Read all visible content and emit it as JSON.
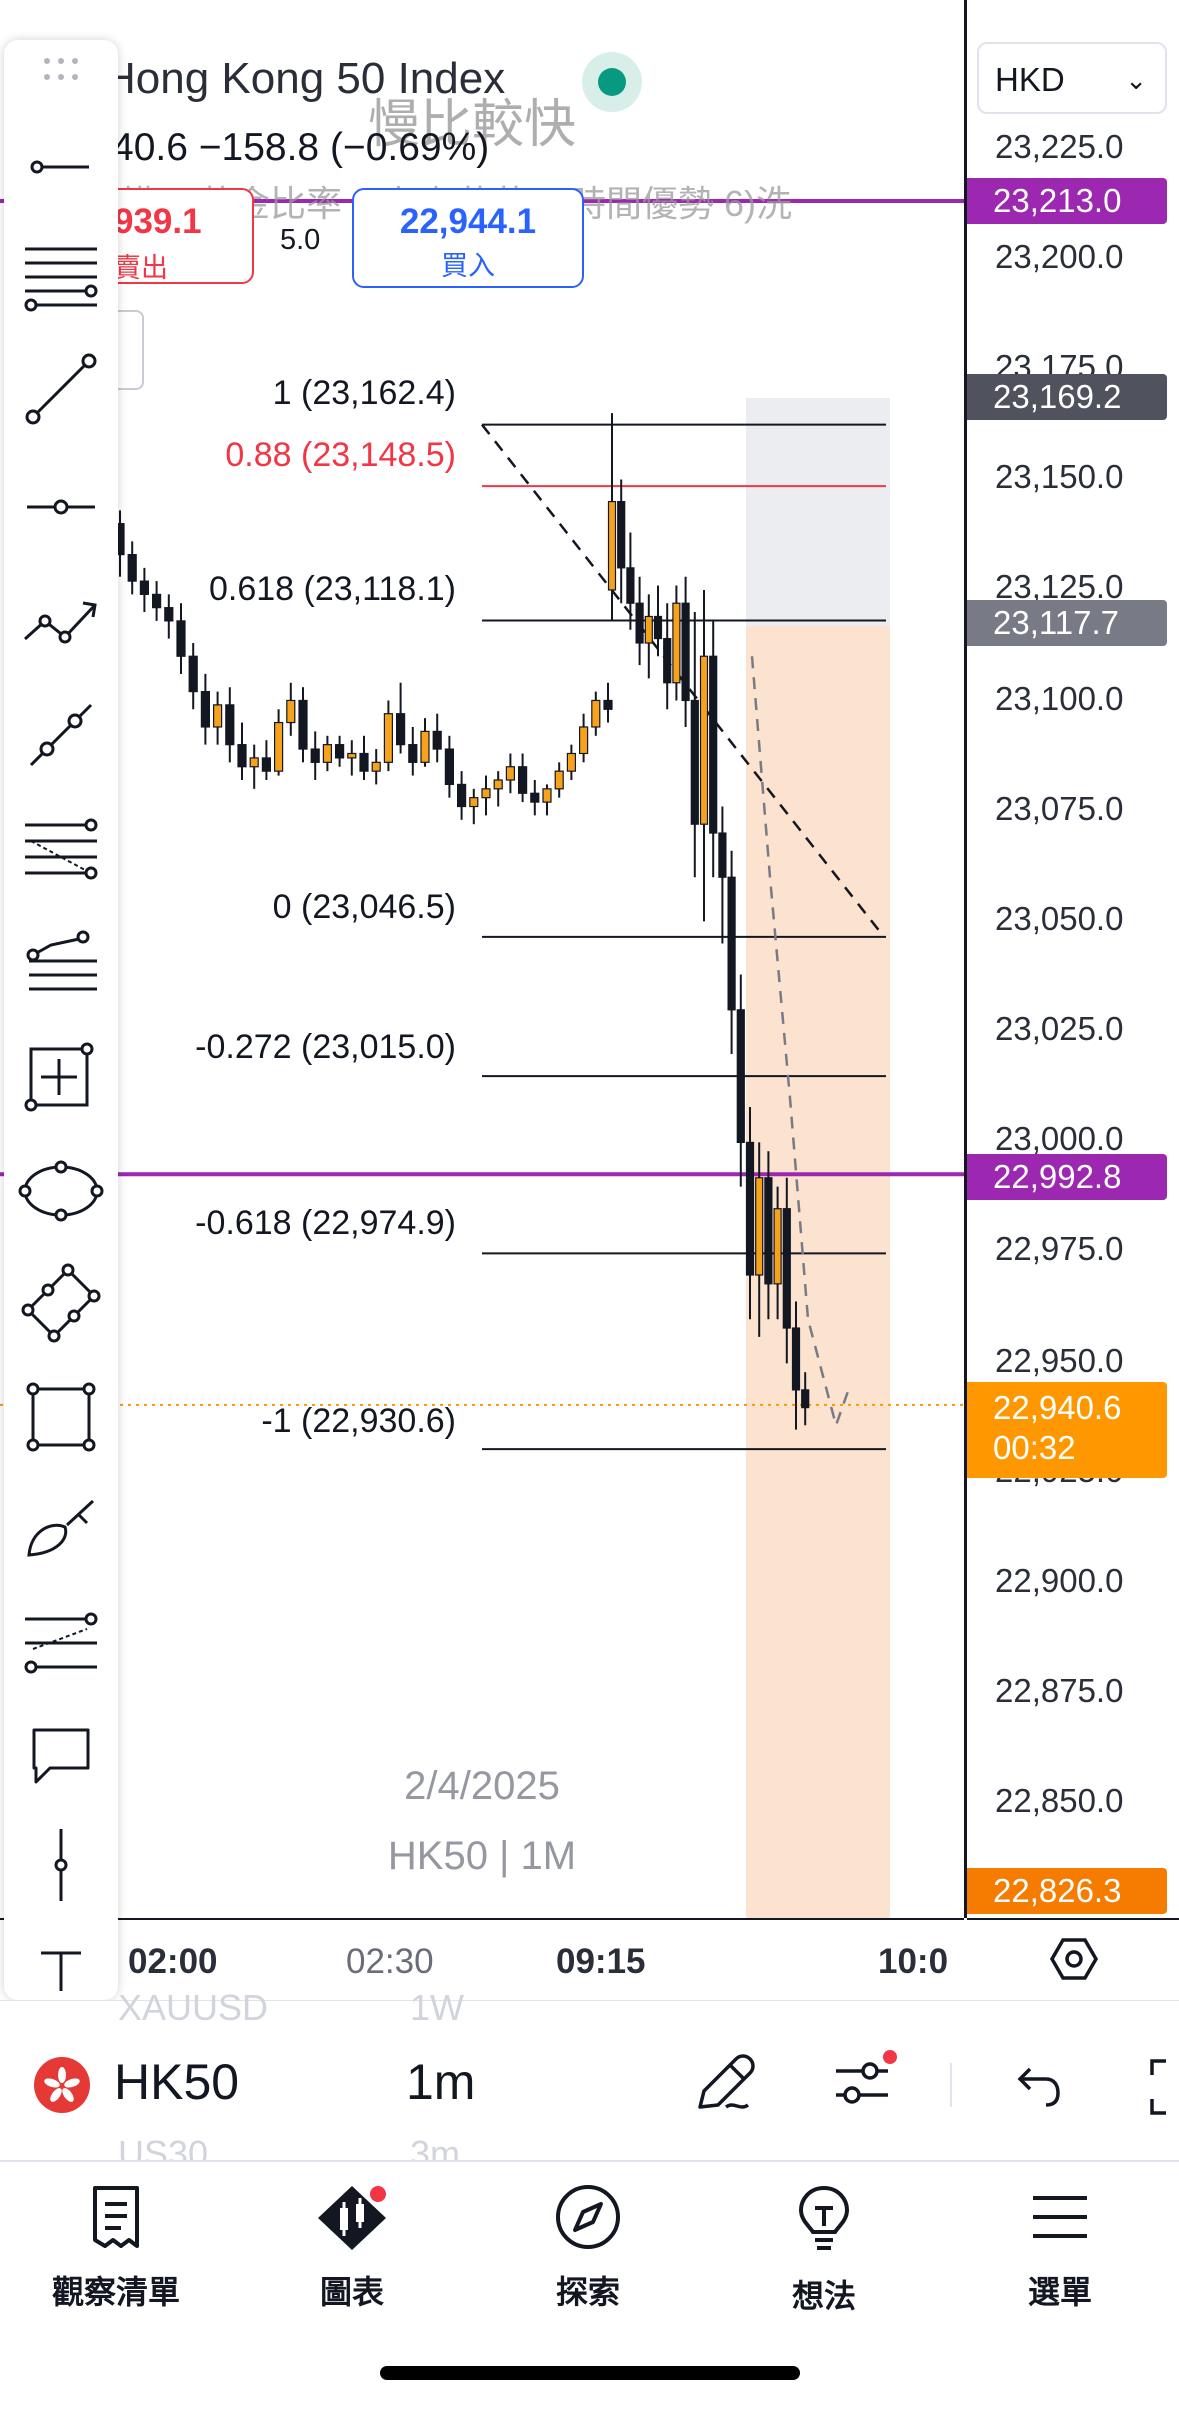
{
  "symbol": {
    "name": "Hong Kong 50 Index",
    "ticker": "HK50",
    "interval": "1m",
    "change_line": "40.6 −158.8 (−0.69%)",
    "sell_price": "939.1",
    "sell_label": "賣出",
    "spread": "5.0",
    "buy_price": "22,944.1",
    "buy_label": "買入",
    "overlay_text_1": "慢比較快",
    "overlay_text_2": "構 3)黃金比率 4)左右葫蘆 5)時間優勢 6)洗",
    "watermark_date": "2/4/2025",
    "watermark_symbol": "HK50 | 1M",
    "status_color": "#089981",
    "ghost_list": [
      "XAUUSD",
      "1W",
      "US30",
      "3m"
    ]
  },
  "currency_select": {
    "value": "HKD",
    "chevron_icon": "chevron-down-icon"
  },
  "price_scale": {
    "ticks": [
      "23,225.0",
      "23,200.0",
      "23,175.0",
      "23,150.0",
      "23,125.0",
      "23,100.0",
      "23,075.0",
      "23,050.0",
      "23,025.0",
      "23,000.0",
      "22,975.0",
      "22,950.0",
      "22,925.0",
      "22,900.0",
      "22,875.0",
      "22,850.0"
    ],
    "labels": [
      {
        "text": "23,213.0",
        "color": "#9c27b0"
      },
      {
        "text": "23,169.2",
        "color": "#50535e"
      },
      {
        "text": "23,117.7",
        "color": "#787b86"
      },
      {
        "text": "22,992.8",
        "color": "#9c27b0"
      },
      {
        "text": "22,940.6",
        "sub": "00:32",
        "color": "#ff9800"
      },
      {
        "text": "22,826.3",
        "color": "#f57c00"
      }
    ]
  },
  "fib_levels": [
    {
      "ratio": "1",
      "price": "23,162.4",
      "text": "1 (23,162.4)",
      "color": "#131722"
    },
    {
      "ratio": "0.88",
      "price": "23,148.5",
      "text": "0.88 (23,148.5)",
      "color": "#f23645"
    },
    {
      "ratio": "0.618",
      "price": "23,118.1",
      "text": "0.618 (23,118.1)",
      "color": "#131722"
    },
    {
      "ratio": "0",
      "price": "23,046.5",
      "text": "0 (23,046.5)",
      "color": "#131722"
    },
    {
      "ratio": "-0.272",
      "price": "23,015.0",
      "text": "-0.272 (23,015.0)",
      "color": "#131722"
    },
    {
      "ratio": "-0.618",
      "price": "22,974.9",
      "text": "-0.618 (22,974.9)",
      "color": "#131722"
    },
    {
      "ratio": "-1",
      "price": "22,930.6",
      "text": "-1 (22,930.6)",
      "color": "#131722"
    }
  ],
  "time_axis": [
    "02:00",
    "02:30",
    "09:15",
    "10:0"
  ],
  "drawing_tools": [
    "drag-handle-icon",
    "horizontal-line-icon",
    "fib-retracement-icon",
    "trend-line-icon",
    "horizontal-ray-icon",
    "path-icon",
    "parallel-channel-icon",
    "pitchfork-icon",
    "fib-fan-icon",
    "fib-channel-icon",
    "projection-icon",
    "ellipse-icon",
    "rotated-rectangle-icon",
    "rectangle-icon",
    "brush-icon",
    "fib-extension-icon",
    "callout-icon",
    "vertical-line-icon",
    "text-icon"
  ],
  "toolbar_row": {
    "flag_icon": "hong-kong-flag-icon",
    "pencil_icon": "pencil-icon",
    "indicators_icon": "sliders-icon",
    "undo_icon": "undo-icon",
    "fullscreen_icon": "fullscreen-icon"
  },
  "nav": [
    {
      "label": "觀察清單",
      "icon": "watchlist-icon"
    },
    {
      "label": "圖表",
      "icon": "chart-icon"
    },
    {
      "label": "探索",
      "icon": "compass-icon"
    },
    {
      "label": "想法",
      "icon": "lightbulb-icon"
    },
    {
      "label": "選單",
      "icon": "menu-icon"
    }
  ],
  "colors": {
    "up": "#f7a21b",
    "down": "#131722",
    "purple_line": "#9c27b0",
    "current_price": "#ff9800",
    "projection_fill": "#fbe3d0",
    "projection_top_fill": "#ebedf0"
  }
}
